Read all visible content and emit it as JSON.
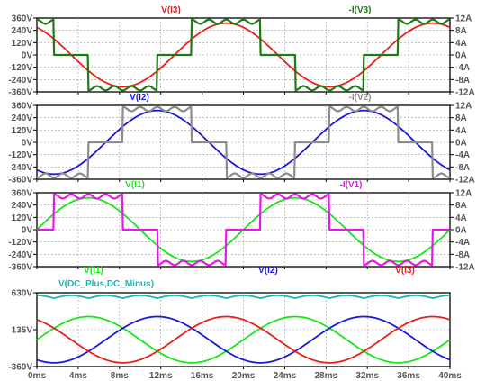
{
  "chart_data": [
    {
      "type": "line",
      "x_range_ms": [
        0,
        40
      ],
      "left_axis": {
        "ticks": [
          "360V",
          "240V",
          "120V",
          "0V",
          "-120V",
          "-240V",
          "-360V"
        ],
        "range": [
          -360,
          360
        ]
      },
      "right_axis": {
        "ticks": [
          "12A",
          "8A",
          "4A",
          "0A",
          "-4A",
          "-8A",
          "-12A"
        ],
        "range": [
          -12,
          12
        ]
      },
      "series": [
        {
          "name": "V(I3)",
          "color": "#e8201c",
          "kind": "sine",
          "amplitude_V": 310,
          "phase_deg": 240,
          "axis": "left"
        },
        {
          "name": "-I(V3)",
          "color": "#1e7a12",
          "kind": "six-step",
          "amplitude_A": 11.5,
          "phase_deg": 240,
          "axis": "right"
        }
      ],
      "grid": true
    },
    {
      "type": "line",
      "x_range_ms": [
        0,
        40
      ],
      "left_axis": {
        "ticks": [
          "360V",
          "240V",
          "120V",
          "0V",
          "-120V",
          "-240V",
          "-360V"
        ],
        "range": [
          -360,
          360
        ]
      },
      "right_axis": {
        "ticks": [
          "12A",
          "8A",
          "4A",
          "0A",
          "-4A",
          "-8A",
          "-12A"
        ],
        "range": [
          -12,
          12
        ]
      },
      "series": [
        {
          "name": "V(I2)",
          "color": "#1a1ad6",
          "kind": "sine",
          "amplitude_V": 310,
          "phase_deg": 120,
          "axis": "left"
        },
        {
          "name": "-I(V2)",
          "color": "#8c8c8c",
          "kind": "six-step",
          "amplitude_A": 11.5,
          "phase_deg": 120,
          "axis": "right"
        }
      ],
      "grid": true
    },
    {
      "type": "line",
      "x_range_ms": [
        0,
        40
      ],
      "left_axis": {
        "ticks": [
          "360V",
          "240V",
          "120V",
          "0V",
          "-120V",
          "-240V",
          "-360V"
        ],
        "range": [
          -360,
          360
        ]
      },
      "right_axis": {
        "ticks": [
          "12A",
          "8A",
          "4A",
          "0A",
          "-4A",
          "-8A",
          "-12A"
        ],
        "range": [
          -12,
          12
        ]
      },
      "series": [
        {
          "name": "V(I1)",
          "color": "#19e619",
          "kind": "sine",
          "amplitude_V": 310,
          "phase_deg": 0,
          "axis": "left"
        },
        {
          "name": "-I(V1)",
          "color": "#e619e6",
          "kind": "six-step",
          "amplitude_A": 11.5,
          "phase_deg": 0,
          "axis": "right"
        }
      ],
      "grid": true
    },
    {
      "type": "line",
      "x_range_ms": [
        0,
        40
      ],
      "x_ticks": [
        "0ms",
        "4ms",
        "8ms",
        "12ms",
        "16ms",
        "20ms",
        "24ms",
        "28ms",
        "32ms",
        "36ms",
        "40ms"
      ],
      "left_axis": {
        "ticks": [
          "630V",
          "135V",
          "-360V"
        ],
        "range": [
          -360,
          630
        ]
      },
      "series": [
        {
          "name": "V(I1)",
          "color": "#19e619",
          "kind": "sine",
          "amplitude_V": 310,
          "phase_deg": 0
        },
        {
          "name": "V(I2)",
          "color": "#1a1ad6",
          "kind": "sine",
          "amplitude_V": 310,
          "phase_deg": 120
        },
        {
          "name": "V(I3)",
          "color": "#e8201c",
          "kind": "sine",
          "amplitude_V": 310,
          "phase_deg": 240
        },
        {
          "name": "V(DC_Plus,DC_Minus)",
          "color": "#1fb3b3",
          "kind": "ripple",
          "mean_V": 575,
          "ripple_V": 38
        }
      ],
      "grid": true
    }
  ]
}
